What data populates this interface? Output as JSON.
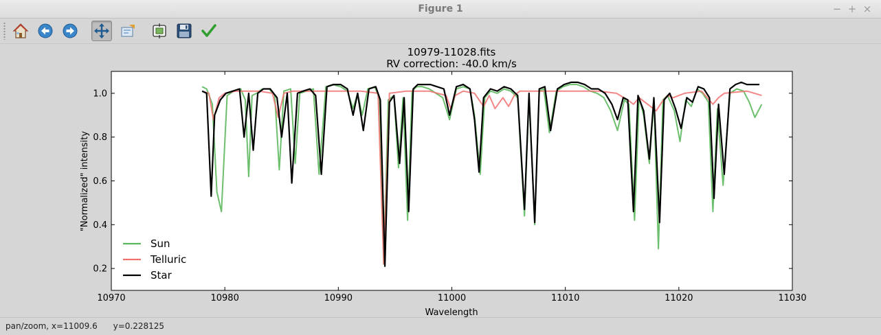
{
  "window": {
    "title": "Figure 1",
    "controls": {
      "minimize": "−",
      "maximize": "+",
      "close": "×"
    }
  },
  "toolbar": {
    "buttons": [
      {
        "name": "home",
        "icon": "home-icon"
      },
      {
        "name": "back",
        "icon": "back-arrow-icon"
      },
      {
        "name": "forward",
        "icon": "forward-arrow-icon"
      },
      {
        "name": "pan",
        "icon": "pan-move-icon",
        "active": true
      },
      {
        "name": "zoom",
        "icon": "zoom-rect-icon"
      },
      {
        "name": "subplots",
        "icon": "subplots-config-icon"
      },
      {
        "name": "save",
        "icon": "floppy-save-icon"
      },
      {
        "name": "edit",
        "icon": "checkmark-icon"
      }
    ]
  },
  "status": {
    "text": "pan/zoom, x=11009.6      y=0.228125"
  },
  "chart_data": {
    "type": "line",
    "title": "10979-11028.fits",
    "subtitle": "RV correction: -40.0 km/s",
    "xlabel": "Wavelength",
    "ylabel": "\"Normalized\" intensity",
    "xlim": [
      10970,
      11030
    ],
    "ylim": [
      0.1,
      1.1
    ],
    "xticks": [
      10970,
      10980,
      10990,
      11000,
      11010,
      11020,
      11030
    ],
    "yticks": [
      0.2,
      0.4,
      0.6,
      0.8,
      1.0
    ],
    "xtick_labels": [
      "10970",
      "10980",
      "10990",
      "11000",
      "11010",
      "11020",
      "11030"
    ],
    "ytick_labels": [
      "0.2",
      "0.4",
      "0.6",
      "0.8",
      "1.0"
    ],
    "grid": false,
    "legend": "lower-left",
    "series": [
      {
        "name": "Sun",
        "color": "#5cb85c",
        "x": [
          10978.0,
          10978.4,
          10978.9,
          10979.3,
          10979.7,
          10980.2,
          10980.8,
          10981.4,
          10981.8,
          10982.1,
          10982.4,
          10982.8,
          10983.3,
          10983.9,
          10984.4,
          10984.8,
          10985.2,
          10985.8,
          10986.2,
          10986.6,
          10987.2,
          10987.8,
          10988.3,
          10988.9,
          10989.5,
          10990.2,
          10990.8,
          10991.3,
          10991.7,
          10992.1,
          10992.6,
          10993.2,
          10993.6,
          10994.0,
          10994.4,
          10994.9,
          10995.3,
          10995.7,
          10996.1,
          10996.5,
          10996.9,
          10997.4,
          10998.0,
          10998.6,
          10999.2,
          10999.8,
          11000.4,
          11001.0,
          11001.6,
          11002.0,
          11002.5,
          11002.9,
          11003.4,
          11004.0,
          11004.6,
          11005.2,
          11005.8,
          11006.4,
          11006.8,
          11007.3,
          11007.7,
          11008.1,
          11008.6,
          11009.2,
          11009.8,
          11010.4,
          11011.0,
          11011.6,
          11012.2,
          11012.8,
          11013.4,
          11014.0,
          11014.6,
          11015.2,
          11015.6,
          11016.1,
          11016.5,
          11016.9,
          11017.4,
          11017.8,
          11018.2,
          11018.6,
          11019.0,
          11019.6,
          11020.1,
          11020.6,
          11021.1,
          11021.6,
          11022.1,
          11022.6,
          11023.0,
          11023.4,
          11023.9,
          11024.5,
          11025.1,
          11025.7,
          11026.2,
          11026.7,
          11027.3
        ],
        "y": [
          1.03,
          1.02,
          0.95,
          0.55,
          0.46,
          0.99,
          1.01,
          1.02,
          0.97,
          0.62,
          0.99,
          1.0,
          1.02,
          1.02,
          0.99,
          0.65,
          1.01,
          1.02,
          0.68,
          1.0,
          1.01,
          1.02,
          0.63,
          1.03,
          1.04,
          1.03,
          1.01,
          0.93,
          1.0,
          0.9,
          1.02,
          1.03,
          0.98,
          0.22,
          0.97,
          0.99,
          0.66,
          0.98,
          0.42,
          1.01,
          1.03,
          1.03,
          1.02,
          1.0,
          0.98,
          0.88,
          1.02,
          1.03,
          1.02,
          0.9,
          0.63,
          0.98,
          1.01,
          1.0,
          1.02,
          1.01,
          0.98,
          0.44,
          0.99,
          0.4,
          1.01,
          1.02,
          0.82,
          1.01,
          1.03,
          1.04,
          1.04,
          1.03,
          1.01,
          1.0,
          0.98,
          0.92,
          0.83,
          0.97,
          0.95,
          0.42,
          0.98,
          0.9,
          0.68,
          0.97,
          0.29,
          0.97,
          0.99,
          0.92,
          0.78,
          0.97,
          0.94,
          1.02,
          1.0,
          0.96,
          0.46,
          0.93,
          0.58,
          1.0,
          1.02,
          1.01,
          0.96,
          0.89,
          0.95
        ]
      },
      {
        "name": "Telluric",
        "color": "#f07070",
        "x": [
          10978.0,
          10978.6,
          10979.0,
          10979.5,
          10980.0,
          10981.0,
          10983.0,
          10984.2,
          10984.7,
          10985.2,
          10986.0,
          10988.0,
          10990.0,
          10992.0,
          10993.5,
          10994.0,
          10994.5,
          10996.0,
          10998.0,
          10999.5,
          10999.9,
          11000.3,
          11001.0,
          11002.0,
          11002.8,
          11003.3,
          11003.8,
          11004.5,
          11005.0,
          11005.5,
          11006.0,
          11007.0,
          11009.0,
          11011.0,
          11013.0,
          11014.5,
          11015.5,
          11016.0,
          11016.5,
          11017.0,
          11017.5,
          11018.0,
          11018.5,
          11019.0,
          11019.5,
          11020.5,
          11022.0,
          11023.0,
          11023.5,
          11024.0,
          11026.0,
          11027.3
        ],
        "y": [
          1.01,
          1.0,
          0.88,
          0.98,
          1.0,
          1.01,
          1.01,
          1.0,
          0.89,
          1.0,
          1.01,
          1.01,
          1.01,
          1.01,
          1.0,
          0.22,
          1.0,
          1.01,
          1.01,
          0.99,
          0.93,
          0.99,
          1.01,
          1.0,
          0.94,
          0.99,
          0.93,
          0.98,
          0.94,
          0.99,
          1.01,
          1.01,
          1.01,
          1.01,
          1.01,
          1.0,
          0.97,
          0.95,
          0.98,
          0.96,
          0.94,
          0.92,
          0.96,
          0.99,
          0.98,
          1.0,
          1.01,
          0.95,
          0.98,
          1.0,
          1.01,
          0.99
        ]
      },
      {
        "name": "Star",
        "color": "#000000",
        "x": [
          10978.0,
          10978.4,
          10978.8,
          10979.1,
          10979.6,
          10980.1,
          10980.7,
          10981.3,
          10981.7,
          10982.1,
          10982.5,
          10982.9,
          10983.4,
          10984.0,
          10984.6,
          10985.0,
          10985.5,
          10985.9,
          10986.4,
          10986.9,
          10987.5,
          10988.0,
          10988.5,
          10989.0,
          10989.6,
          10990.2,
          10990.8,
          10991.3,
          10991.7,
          10992.2,
          10992.7,
          10993.3,
          10993.7,
          10994.1,
          10994.5,
          10994.9,
          10995.4,
          10995.8,
          10996.2,
          10996.6,
          10997.0,
          10997.5,
          10998.1,
          10998.7,
          10999.3,
          10999.8,
          11000.4,
          11001.0,
          11001.6,
          11002.0,
          11002.4,
          11002.8,
          11003.4,
          11004.0,
          11004.6,
          11005.2,
          11005.8,
          11006.4,
          11006.8,
          11007.3,
          11007.7,
          11008.2,
          11008.7,
          11009.3,
          11009.9,
          11010.5,
          11011.1,
          11011.7,
          11012.3,
          11012.9,
          11013.5,
          11014.1,
          11014.6,
          11015.1,
          11015.5,
          11016.0,
          11016.4,
          11016.9,
          11017.4,
          11017.8,
          11018.3,
          11018.7,
          11019.2,
          11019.7,
          11020.2,
          11020.7,
          11021.2,
          11021.7,
          11022.2,
          11022.7,
          11023.1,
          11023.5,
          11024.0,
          11024.5,
          11025.0,
          11025.5,
          11026.0,
          11026.5,
          11027.1
        ],
        "y": [
          1.01,
          1.0,
          0.53,
          0.9,
          0.97,
          1.0,
          1.01,
          1.02,
          0.8,
          1.0,
          0.74,
          1.0,
          1.02,
          1.02,
          0.98,
          0.8,
          1.0,
          0.59,
          1.0,
          1.01,
          1.02,
          0.99,
          0.63,
          1.03,
          1.04,
          1.04,
          1.02,
          0.9,
          1.0,
          0.83,
          1.02,
          1.03,
          0.97,
          0.21,
          0.96,
          0.99,
          0.68,
          0.98,
          0.46,
          1.02,
          1.04,
          1.04,
          1.04,
          1.03,
          1.02,
          0.9,
          1.03,
          1.04,
          1.02,
          0.88,
          0.64,
          0.98,
          1.02,
          1.01,
          1.03,
          1.02,
          0.99,
          0.47,
          1.0,
          0.41,
          1.02,
          1.03,
          0.83,
          1.02,
          1.04,
          1.05,
          1.05,
          1.04,
          1.02,
          1.02,
          1.0,
          0.95,
          0.88,
          0.98,
          0.97,
          0.46,
          0.99,
          0.92,
          0.7,
          0.98,
          0.41,
          0.97,
          1.0,
          0.93,
          0.84,
          0.98,
          0.96,
          1.03,
          1.02,
          0.98,
          0.52,
          0.95,
          0.63,
          1.02,
          1.04,
          1.05,
          1.04,
          1.04,
          1.04
        ]
      }
    ]
  }
}
